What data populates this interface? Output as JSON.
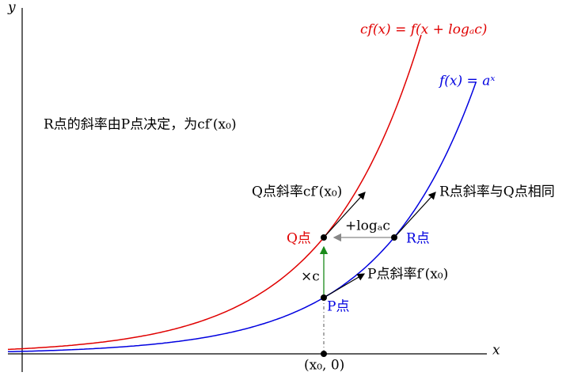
{
  "axes": {
    "y_label": "y",
    "x_label": "x"
  },
  "curves": {
    "red_label": "cf(x) = f(x + logₐc)",
    "blue_label": "f(x) = aˣ"
  },
  "note": "R点的斜率由P点决定，为cf′(x₀)",
  "labels": {
    "q_slope": "Q点斜率cf′(x₀)",
    "r_slope": "R点斜率与Q点相同",
    "shift": "+logₐc",
    "q_point": "Q点",
    "r_point": "R点",
    "times_c": "×c",
    "p_slope": "P点斜率f′(x₀)",
    "p_point": "P点",
    "x0": "(x₀, 0)"
  }
}
